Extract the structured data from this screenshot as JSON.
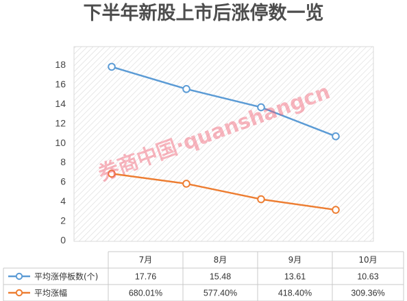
{
  "chart_data": {
    "type": "line",
    "title": "下半年新股上市后涨停数一览",
    "categories": [
      "7月",
      "8月",
      "9月",
      "10月"
    ],
    "ylim": [
      0,
      18
    ],
    "yticks": [
      "0",
      "2",
      "4",
      "6",
      "8",
      "10",
      "12",
      "14",
      "16",
      "18"
    ],
    "grid": "hatched plot area",
    "legend": "data table below chart",
    "series": [
      {
        "name": "平均涨停板数(个)",
        "values": [
          17.76,
          15.48,
          13.61,
          10.63
        ],
        "labels": [
          "17.76",
          "15.48",
          "13.61",
          "10.63"
        ],
        "color": "#5b9bd5"
      },
      {
        "name": "平均涨幅",
        "values": [
          6.8,
          5.77,
          4.18,
          3.09
        ],
        "labels": [
          "680.01%",
          "577.40%",
          "418.40%",
          "309.36%"
        ],
        "color": "#ed7d31"
      }
    ],
    "watermark": "券商中国·quanshangcn"
  }
}
